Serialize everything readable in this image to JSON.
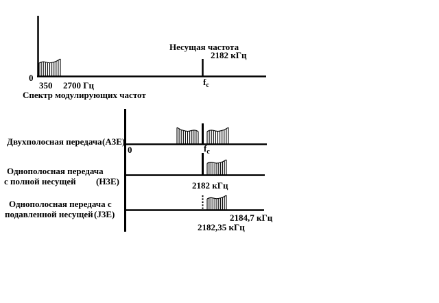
{
  "colors": {
    "ink": "#000000",
    "paper": "#ffffff"
  },
  "modulating": {
    "zero": "0",
    "f_low": "350",
    "f_high": "2700 Гц",
    "caption": "Спектр модулирующих частот"
  },
  "carrier": {
    "title": "Несущая частота",
    "value": "2182 кГц",
    "axis_label_base": "f",
    "axis_label_sub": "c"
  },
  "dsb": {
    "label": "Двухполосная передача",
    "designator": "(A3E)",
    "zero": "0",
    "axis_label_base": "f",
    "axis_label_sub": "c"
  },
  "ssb_full": {
    "label_line1": "Однополосная передача",
    "label_line2": "с полной несущей",
    "designator": "(H3E)",
    "carrier_value": "2182 кГц"
  },
  "ssb_suppressed": {
    "label_line1": "Однополосная передача с",
    "label_line2": "подавленной несущей",
    "designator": "(J3E)",
    "upper_edge": "2184,7 кГц",
    "carrier_freq": "2182,35 кГц"
  }
}
